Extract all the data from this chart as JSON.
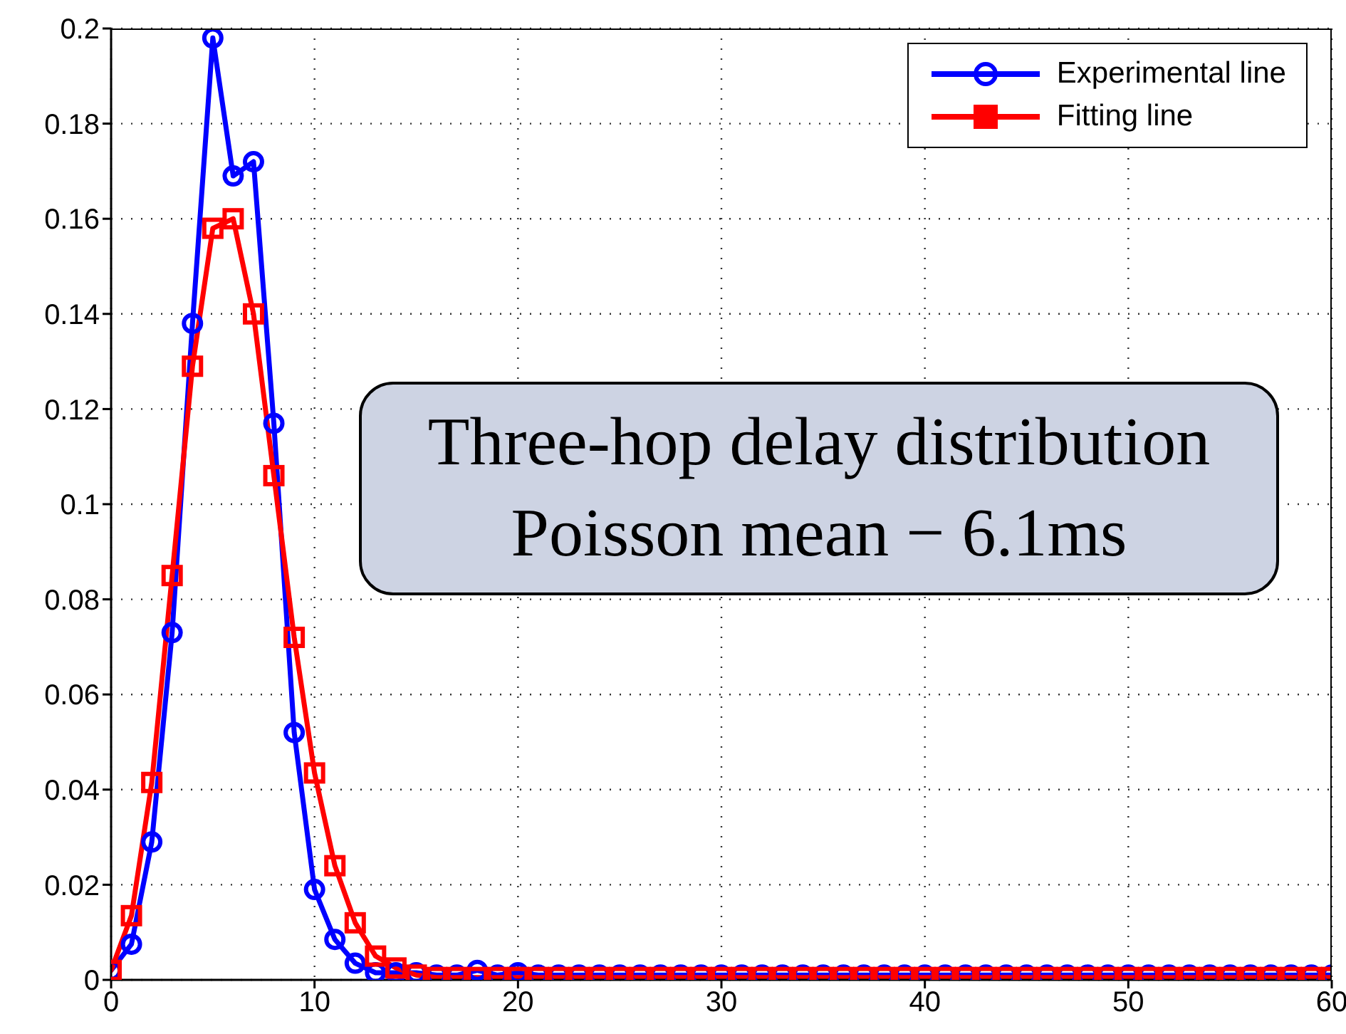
{
  "chart_data": {
    "type": "line",
    "x": [
      0,
      1,
      2,
      3,
      4,
      5,
      6,
      7,
      8,
      9,
      10,
      11,
      12,
      13,
      14,
      15,
      16,
      17,
      18,
      19,
      20,
      21,
      22,
      23,
      24,
      25,
      26,
      27,
      28,
      29,
      30,
      31,
      32,
      33,
      34,
      35,
      36,
      37,
      38,
      39,
      40,
      41,
      42,
      43,
      44,
      45,
      46,
      47,
      48,
      49,
      50,
      51,
      52,
      53,
      54,
      55,
      56,
      57,
      58,
      59,
      60
    ],
    "series": [
      {
        "name": "Experimental line",
        "color": "#0000ff",
        "marker": "circle",
        "values": [
          0.002,
          0.0075,
          0.029,
          0.073,
          0.138,
          0.198,
          0.169,
          0.172,
          0.117,
          0.052,
          0.019,
          0.0085,
          0.0035,
          0.0015,
          0.0015,
          0.0015,
          0.001,
          0.001,
          0.002,
          0.001,
          0.0015,
          0.001,
          0.001,
          0.001,
          0.001,
          0.001,
          0.001,
          0.001,
          0.001,
          0.001,
          0.001,
          0.001,
          0.001,
          0.001,
          0.001,
          0.001,
          0.001,
          0.001,
          0.001,
          0.001,
          0.001,
          0.001,
          0.001,
          0.001,
          0.001,
          0.001,
          0.001,
          0.001,
          0.001,
          0.001,
          0.001,
          0.001,
          0.001,
          0.001,
          0.001,
          0.001,
          0.001,
          0.001,
          0.001,
          0.001,
          0.001
        ]
      },
      {
        "name": "Fitting line",
        "color": "#ff0000",
        "marker": "square",
        "values": [
          0.002,
          0.0135,
          0.0415,
          0.085,
          0.129,
          0.158,
          0.16,
          0.14,
          0.106,
          0.072,
          0.0435,
          0.024,
          0.012,
          0.005,
          0.0025,
          0.001,
          0.0005,
          0.0005,
          0.0005,
          0.0005,
          0.0005,
          0.0005,
          0.0005,
          0.0005,
          0.0005,
          0.0005,
          0.0005,
          0.0005,
          0.0005,
          0.0005,
          0.0005,
          0.0005,
          0.0005,
          0.0005,
          0.0005,
          0.0005,
          0.0005,
          0.0005,
          0.0005,
          0.0005,
          0.0005,
          0.0005,
          0.0005,
          0.0005,
          0.0005,
          0.0005,
          0.0005,
          0.0005,
          0.0005,
          0.0005,
          0.0005,
          0.0005,
          0.0005,
          0.0005,
          0.0005,
          0.0005,
          0.0005,
          0.0005,
          0.0005,
          0.0005,
          0.0005
        ]
      }
    ],
    "xlim": [
      0,
      60
    ],
    "xticks": [
      0,
      10,
      20,
      30,
      40,
      50,
      60
    ],
    "ylim": [
      0,
      0.2
    ],
    "yticks": [
      0,
      0.02,
      0.04,
      0.06,
      0.08,
      0.1,
      0.12,
      0.14,
      0.16,
      0.18,
      0.2
    ],
    "grid": true,
    "legend": "top right",
    "line_style": "solid",
    "annotations": [
      "Three-hop delay distribution\nPoisson mean − 6.1ms"
    ]
  }
}
